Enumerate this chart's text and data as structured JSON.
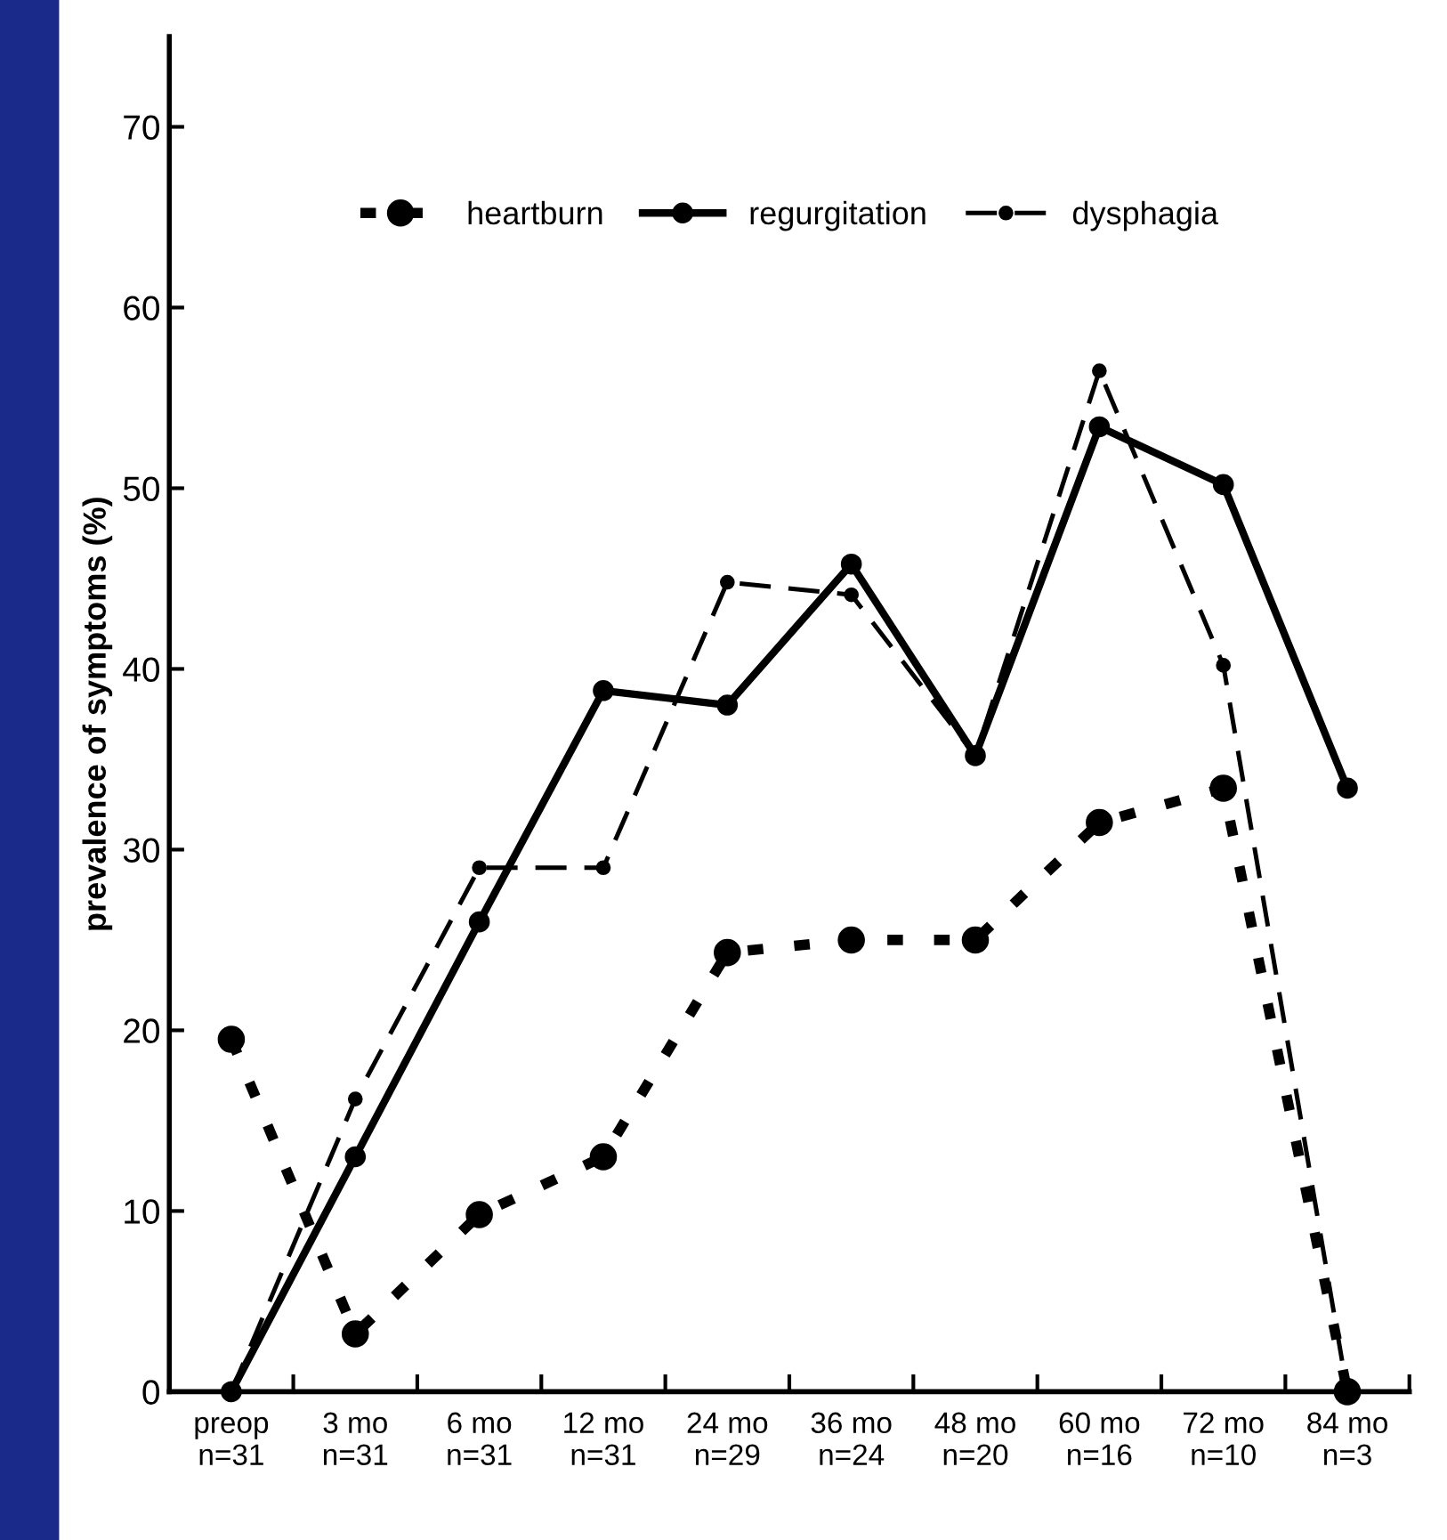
{
  "chart_data": {
    "type": "line",
    "ylabel": "prevalence of symptoms (%)",
    "categories": [
      "preop\nn=31",
      "3 mo\nn=31",
      "6 mo\nn=31",
      "12 mo\nn=31",
      "24 mo\nn=29",
      "36 mo\nn=24",
      "48 mo\nn=20",
      "60 mo\nn=16",
      "72 mo\nn=10",
      "84 mo\nn=3"
    ],
    "series": [
      {
        "name": "heartburn",
        "color": "#000000",
        "line_style": "dotted",
        "values": [
          19.5,
          3.2,
          9.8,
          13,
          24.3,
          25,
          25,
          31.5,
          33.4,
          0
        ]
      },
      {
        "name": "regurgitation",
        "color": "#000000",
        "line_style": "solid",
        "values": [
          0,
          13,
          26,
          38.8,
          38,
          45.8,
          35.2,
          53.4,
          50.2,
          33.4
        ]
      },
      {
        "name": "dysphagia",
        "color": "#000000",
        "line_style": "dashed",
        "values": [
          0,
          16.2,
          29,
          29,
          44.8,
          44.1,
          35.2,
          56.5,
          40.2,
          0
        ]
      }
    ],
    "ylim": [
      0,
      75
    ],
    "yticks": [
      0,
      10,
      20,
      30,
      40,
      50,
      60,
      70
    ],
    "marker": "circle",
    "legend": "top",
    "grid": false
  }
}
